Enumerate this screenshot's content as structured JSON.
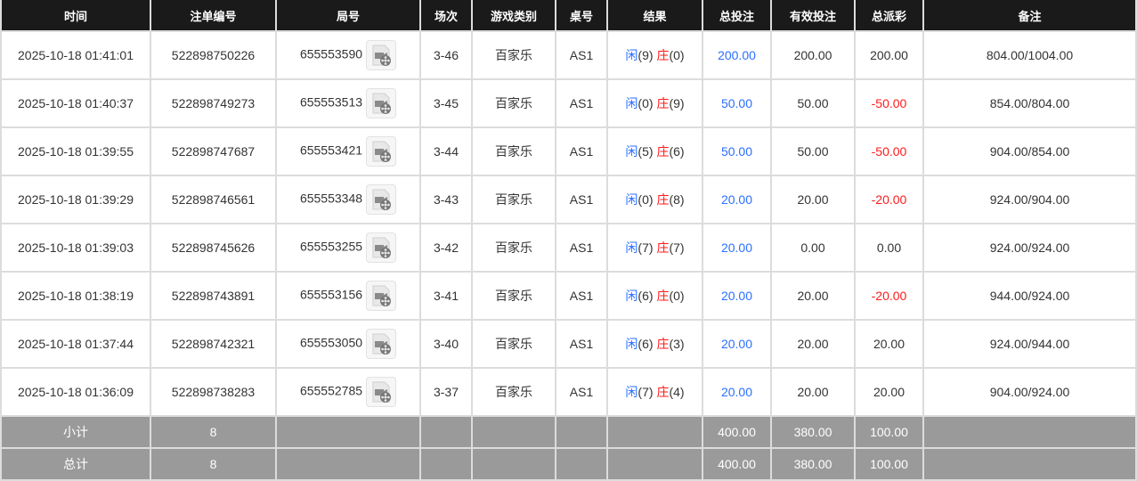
{
  "headers": [
    "时间",
    "注单编号",
    "局号",
    "场次",
    "游戏类别",
    "桌号",
    "结果",
    "总投注",
    "有效投注",
    "总派彩",
    "备注"
  ],
  "colors": {
    "player": "#2b6fff",
    "banker": "#ff1a1a",
    "negative": "#ff1a1a",
    "bet": "#2b6fff",
    "header_bg": "#1a1a1a",
    "footer_bg": "#9a9a9a"
  },
  "rows": [
    {
      "time": "2025-10-18 01:41:01",
      "bet_no": "522898750226",
      "round": "655553590",
      "session": "3-46",
      "game": "百家乐",
      "table": "AS1",
      "player": "闲",
      "player_score": "(9)",
      "banker": "庄",
      "banker_score": "(0)",
      "total_bet": "200.00",
      "valid_bet": "200.00",
      "payout": "200.00",
      "negative": false,
      "note": "804.00/1004.00"
    },
    {
      "time": "2025-10-18 01:40:37",
      "bet_no": "522898749273",
      "round": "655553513",
      "session": "3-45",
      "game": "百家乐",
      "table": "AS1",
      "player": "闲",
      "player_score": "(0)",
      "banker": "庄",
      "banker_score": "(9)",
      "total_bet": "50.00",
      "valid_bet": "50.00",
      "payout": "-50.00",
      "negative": true,
      "note": "854.00/804.00"
    },
    {
      "time": "2025-10-18 01:39:55",
      "bet_no": "522898747687",
      "round": "655553421",
      "session": "3-44",
      "game": "百家乐",
      "table": "AS1",
      "player": "闲",
      "player_score": "(5)",
      "banker": "庄",
      "banker_score": "(6)",
      "total_bet": "50.00",
      "valid_bet": "50.00",
      "payout": "-50.00",
      "negative": true,
      "note": "904.00/854.00"
    },
    {
      "time": "2025-10-18 01:39:29",
      "bet_no": "522898746561",
      "round": "655553348",
      "session": "3-43",
      "game": "百家乐",
      "table": "AS1",
      "player": "闲",
      "player_score": "(0)",
      "banker": "庄",
      "banker_score": "(8)",
      "total_bet": "20.00",
      "valid_bet": "20.00",
      "payout": "-20.00",
      "negative": true,
      "note": "924.00/904.00"
    },
    {
      "time": "2025-10-18 01:39:03",
      "bet_no": "522898745626",
      "round": "655553255",
      "session": "3-42",
      "game": "百家乐",
      "table": "AS1",
      "player": "闲",
      "player_score": "(7)",
      "banker": "庄",
      "banker_score": "(7)",
      "total_bet": "20.00",
      "valid_bet": "0.00",
      "payout": "0.00",
      "negative": false,
      "note": "924.00/924.00"
    },
    {
      "time": "2025-10-18 01:38:19",
      "bet_no": "522898743891",
      "round": "655553156",
      "session": "3-41",
      "game": "百家乐",
      "table": "AS1",
      "player": "闲",
      "player_score": "(6)",
      "banker": "庄",
      "banker_score": "(0)",
      "total_bet": "20.00",
      "valid_bet": "20.00",
      "payout": "-20.00",
      "negative": true,
      "note": "944.00/924.00"
    },
    {
      "time": "2025-10-18 01:37:44",
      "bet_no": "522898742321",
      "round": "655553050",
      "session": "3-40",
      "game": "百家乐",
      "table": "AS1",
      "player": "闲",
      "player_score": "(6)",
      "banker": "庄",
      "banker_score": "(3)",
      "total_bet": "20.00",
      "valid_bet": "20.00",
      "payout": "20.00",
      "negative": false,
      "note": "924.00/944.00"
    },
    {
      "time": "2025-10-18 01:36:09",
      "bet_no": "522898738283",
      "round": "655552785",
      "session": "3-37",
      "game": "百家乐",
      "table": "AS1",
      "player": "闲",
      "player_score": "(7)",
      "banker": "庄",
      "banker_score": "(4)",
      "total_bet": "20.00",
      "valid_bet": "20.00",
      "payout": "20.00",
      "negative": false,
      "note": "904.00/924.00"
    }
  ],
  "footer": [
    {
      "label": "小计",
      "count": "8",
      "total_bet": "400.00",
      "valid_bet": "380.00",
      "payout": "100.00"
    },
    {
      "label": "总计",
      "count": "8",
      "total_bet": "400.00",
      "valid_bet": "380.00",
      "payout": "100.00"
    }
  ],
  "video_icon": "video-replay-icon"
}
